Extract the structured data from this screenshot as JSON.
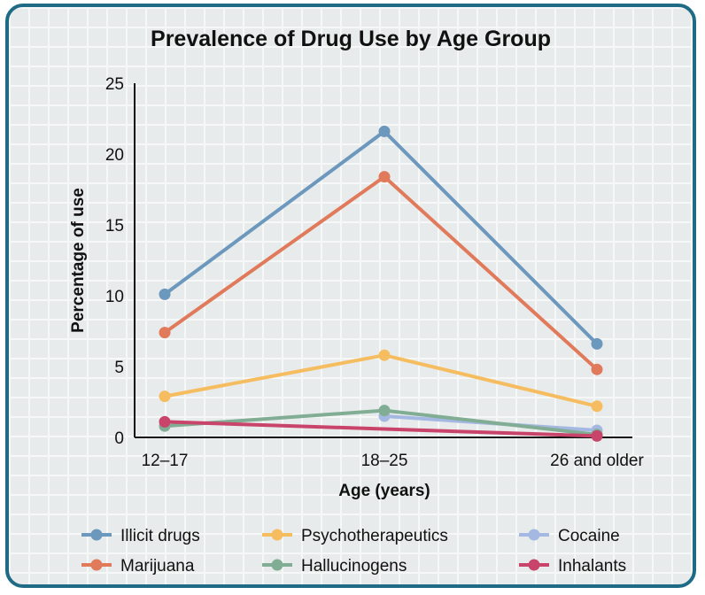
{
  "chart_data": {
    "type": "line",
    "title": "Prevalence of Drug Use by Age Group",
    "xlabel": "Age (years)",
    "ylabel": "Percentage of use",
    "categories": [
      "12–17",
      "18–25",
      "26 and older"
    ],
    "ylim": [
      0,
      25
    ],
    "yticks": [
      "0",
      "5",
      "10",
      "15",
      "20",
      "25"
    ],
    "grid": true,
    "legend_position": "bottom",
    "series": [
      {
        "name": "Illicit drugs",
        "color": "#6d98bd",
        "values": [
          10.1,
          21.6,
          6.6
        ]
      },
      {
        "name": "Psychotherapeutics",
        "color": "#f6bd60",
        "values": [
          2.9,
          5.8,
          2.2
        ]
      },
      {
        "name": "Cocaine",
        "color": "#a4b8e2",
        "values": [
          null,
          1.5,
          0.5
        ]
      },
      {
        "name": "Marijuana",
        "color": "#e07a5b",
        "values": [
          7.4,
          18.4,
          4.8
        ]
      },
      {
        "name": "Hallucinogens",
        "color": "#80ad93",
        "values": [
          0.8,
          1.9,
          0.2
        ]
      },
      {
        "name": "Inhalants",
        "color": "#c9446a",
        "values": [
          1.1,
          null,
          0.1
        ]
      }
    ]
  }
}
